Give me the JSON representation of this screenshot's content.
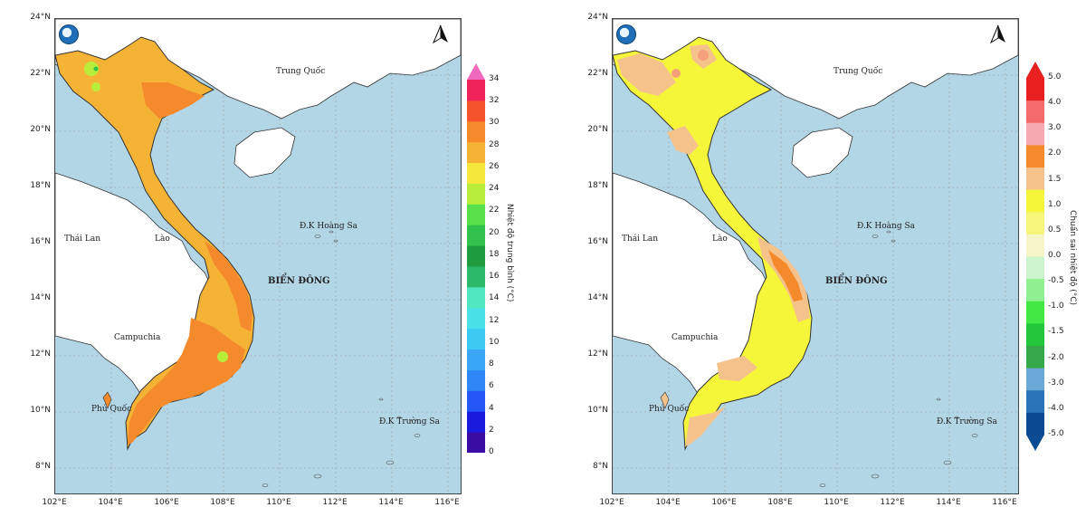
{
  "colors": {
    "sea": "#b3d6e6",
    "land_other": "#ffffff",
    "border": "#333333"
  },
  "icons": [
    "logo-icon",
    "north-arrow-icon"
  ],
  "panels": [
    {
      "id": "temperature",
      "lat_labels": [
        "24°N",
        "22°N",
        "20°N",
        "18°N",
        "16°N",
        "14°N",
        "12°N",
        "10°N",
        "8°N"
      ],
      "lon_labels": [
        "102°E",
        "104°E",
        "106°E",
        "108°E",
        "110°E",
        "112°E",
        "114°E",
        "116°E"
      ],
      "place_labels": {
        "china": "Trung Quốc",
        "thailand": "Thái Lan",
        "laos": "Lào",
        "cambodia": "Campuchia",
        "east_sea": "BIỂN ĐÔNG",
        "hoang_sa": "Đ.K Hoàng Sa",
        "truong_sa": "Đ.K Trường Sa",
        "phu_quoc": "Phú Quốc"
      },
      "colorbar": {
        "title": "Nhiệt độ trung bình (°C)",
        "ticks": [
          "34",
          "32",
          "30",
          "28",
          "26",
          "24",
          "22",
          "20",
          "18",
          "16",
          "14",
          "12",
          "10",
          "8",
          "6",
          "4",
          "2",
          "0"
        ],
        "colors": [
          "#3a0ca3",
          "#1a1adf",
          "#2457f5",
          "#2f86f5",
          "#3aa7f5",
          "#3cc9f2",
          "#49e0e8",
          "#4fe6c0",
          "#2db96a",
          "#1f9c3d",
          "#30c24a",
          "#58e04a",
          "#b8ee3b",
          "#f5e83a",
          "#f5b336",
          "#f58a2c",
          "#f5532c",
          "#f0245a"
        ],
        "top_arrow": "#f06ac0"
      }
    },
    {
      "id": "anomaly",
      "lat_labels": [
        "24°N",
        "22°N",
        "20°N",
        "18°N",
        "16°N",
        "14°N",
        "12°N",
        "10°N",
        "8°N"
      ],
      "lon_labels": [
        "102°E",
        "104°E",
        "106°E",
        "108°E",
        "110°E",
        "112°E",
        "114°E",
        "116°E"
      ],
      "place_labels": {
        "china": "Trung Quốc",
        "thailand": "Thái Lan",
        "laos": "Lào",
        "cambodia": "Campuchia",
        "east_sea": "BIỂN ĐÔNG",
        "hoang_sa": "Đ.K Hoàng Sa",
        "truong_sa": "Đ.K Trường Sa",
        "phu_quoc": "Phú Quốc"
      },
      "colorbar": {
        "title": "Chuẩn sai nhiệt độ (°C)",
        "ticks": [
          "5.0",
          "4.0",
          "3.0",
          "2.0",
          "1.5",
          "1.0",
          "0.5",
          "0.0",
          "-0.5",
          "-1.0",
          "-1.5",
          "-2.0",
          "-3.0",
          "-4.0",
          "-5.0"
        ],
        "colors": [
          "#0a4a90",
          "#2a74b8",
          "#6aa8d8",
          "#36a84a",
          "#22c83a",
          "#44e844",
          "#8ef08e",
          "#cdf5cd",
          "#f5f5c8",
          "#f5f57a",
          "#f5f53a",
          "#f5c28c",
          "#f58a2c",
          "#f5a8b0",
          "#f56a6a",
          "#e82020"
        ],
        "top_arrow": "#e82020",
        "bottom_arrow": "#0a4a90"
      }
    }
  ]
}
